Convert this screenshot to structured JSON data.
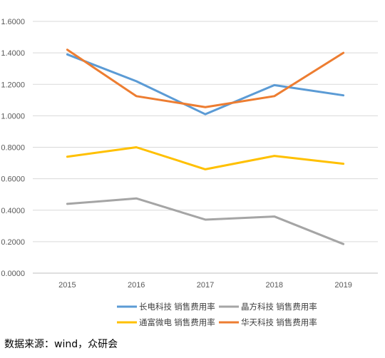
{
  "chart_data": {
    "type": "line",
    "categories": [
      "2015",
      "2016",
      "2017",
      "2018",
      "2019"
    ],
    "ylim": [
      0,
      1.6
    ],
    "yticks": [
      "0.0000",
      "0.2000",
      "0.4000",
      "0.6000",
      "0.8000",
      "1.0000",
      "1.2000",
      "1.4000",
      "1.6000"
    ],
    "grid": true,
    "legend_position": "bottom",
    "series": [
      {
        "name": "长电科技 销售费用率",
        "color": "#5b9bd5",
        "values": [
          1.39,
          1.22,
          1.01,
          1.195,
          1.13
        ]
      },
      {
        "name": "晶方科技 销售费用率",
        "color": "#a5a5a5",
        "values": [
          0.44,
          0.475,
          0.34,
          0.36,
          0.185
        ]
      },
      {
        "name": "通富微电 销售费用率",
        "color": "#ffc000",
        "values": [
          0.74,
          0.8,
          0.66,
          0.745,
          0.695
        ]
      },
      {
        "name": "华天科技 销售费用率",
        "color": "#ed7d31",
        "values": [
          1.42,
          1.125,
          1.055,
          1.125,
          1.4
        ]
      }
    ]
  },
  "source": "数据来源：wind，众研会"
}
